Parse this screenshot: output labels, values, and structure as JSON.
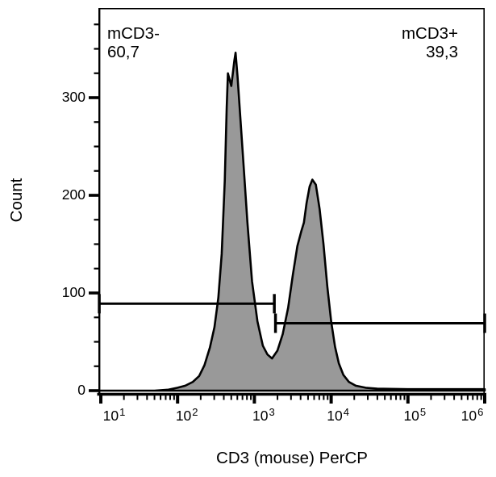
{
  "figure": {
    "xlabel": "CD3 (mouse) PerCP",
    "ylabel": "Count",
    "background": "#ffffff",
    "text_color": "#000000"
  },
  "chart_data": {
    "type": "area",
    "subtype": "flow-cytometry-histogram",
    "title": "",
    "xlabel": "CD3 (mouse) PerCP",
    "ylabel": "Count",
    "grid": false,
    "legend": false,
    "x_axis": {
      "scale": "log10",
      "min_log": 0.98,
      "max_log": 6.0,
      "tick_base": "10",
      "major_tick_exponents": [
        1,
        2,
        3,
        4,
        5,
        6
      ],
      "minor_ticks": "2-9 within each decade"
    },
    "y_axis": {
      "min": 0,
      "max": 390,
      "major_ticks": [
        0,
        100,
        200,
        300
      ],
      "minor_tick_step": 25
    },
    "series": [
      {
        "name": "CD3 (mouse) PerCP",
        "fill_color": "#999999",
        "line_color": "#000000",
        "points_log10x_count": [
          [
            0.98,
            0
          ],
          [
            1.7,
            0
          ],
          [
            1.88,
            1
          ],
          [
            2.0,
            3
          ],
          [
            2.1,
            5
          ],
          [
            2.2,
            9
          ],
          [
            2.28,
            15
          ],
          [
            2.35,
            26
          ],
          [
            2.42,
            44
          ],
          [
            2.48,
            65
          ],
          [
            2.53,
            95
          ],
          [
            2.575,
            140
          ],
          [
            2.615,
            215
          ],
          [
            2.64,
            290
          ],
          [
            2.655,
            325
          ],
          [
            2.7,
            312
          ],
          [
            2.74,
            338
          ],
          [
            2.755,
            346
          ],
          [
            2.78,
            322
          ],
          [
            2.81,
            288
          ],
          [
            2.85,
            242
          ],
          [
            2.91,
            172
          ],
          [
            2.97,
            112
          ],
          [
            3.04,
            71
          ],
          [
            3.11,
            46
          ],
          [
            3.17,
            37
          ],
          [
            3.23,
            33
          ],
          [
            3.3,
            41
          ],
          [
            3.37,
            58
          ],
          [
            3.44,
            85
          ],
          [
            3.5,
            118
          ],
          [
            3.56,
            148
          ],
          [
            3.61,
            163
          ],
          [
            3.645,
            172
          ],
          [
            3.68,
            192
          ],
          [
            3.72,
            209
          ],
          [
            3.755,
            216
          ],
          [
            3.8,
            211
          ],
          [
            3.85,
            186
          ],
          [
            3.9,
            150
          ],
          [
            3.95,
            107
          ],
          [
            4.0,
            71
          ],
          [
            4.05,
            45
          ],
          [
            4.1,
            28
          ],
          [
            4.16,
            16
          ],
          [
            4.23,
            9
          ],
          [
            4.32,
            5
          ],
          [
            4.45,
            3
          ],
          [
            4.6,
            2
          ],
          [
            5.0,
            1.5
          ],
          [
            6.0,
            1.5
          ]
        ]
      }
    ],
    "gates": [
      {
        "name": "mCD3-",
        "percent_label": "60,7",
        "level_count": 89,
        "from_log10x": 0.98,
        "to_log10x": 3.26
      },
      {
        "name": "mCD3+",
        "percent_label": "39,3",
        "level_count": 69,
        "from_log10x": 3.275,
        "to_log10x": 6.0
      }
    ]
  }
}
